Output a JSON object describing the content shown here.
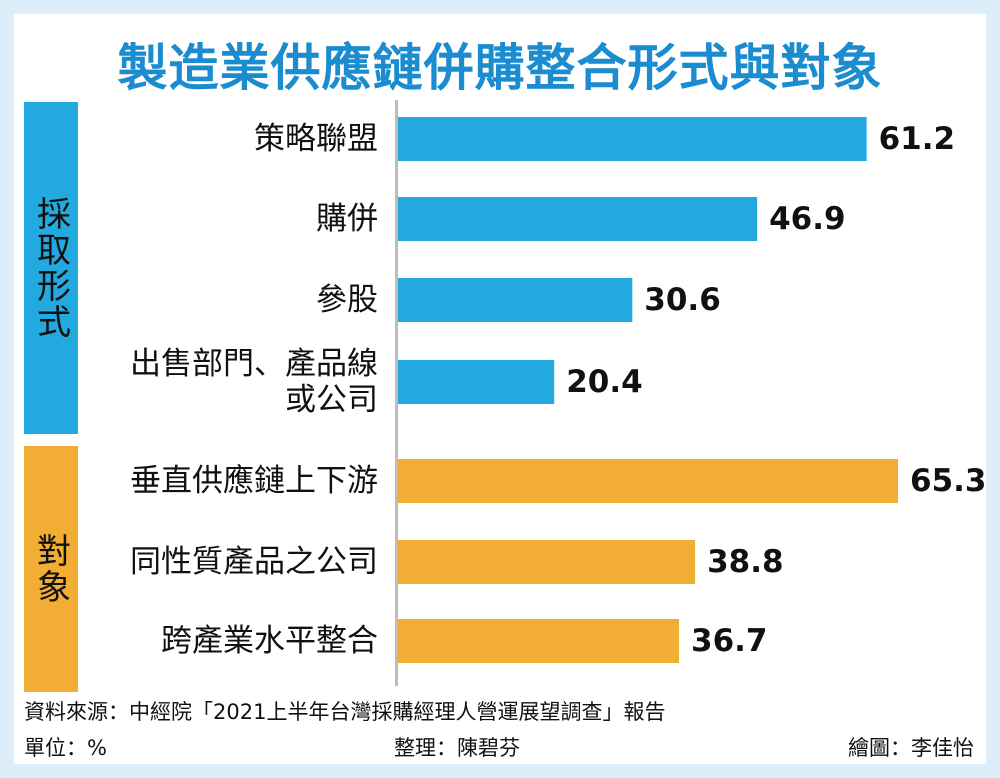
{
  "title": "製造業供應鏈併購整合形式與對象",
  "groups": {
    "methods": "採取形式",
    "targets": "對象"
  },
  "footer": {
    "source": "資料來源：中經院「2021上半年台灣採購經理人營運展望調查」報告",
    "unit": "單位：%",
    "editor": "整理：陳碧芬",
    "illustrator": "繪圖：李佳怡"
  },
  "colors": {
    "methods": "#22a9df",
    "targets": "#f2ad34",
    "title": "#1a8ccf"
  },
  "chart_data": {
    "type": "bar",
    "orientation": "horizontal",
    "xlim": [
      0,
      65.3
    ],
    "items": [
      {
        "group": "methods",
        "label": [
          "策略聯盟"
        ],
        "value": 61.2,
        "value_label": "61.2"
      },
      {
        "group": "methods",
        "label": [
          "購併"
        ],
        "value": 46.9,
        "value_label": "46.9"
      },
      {
        "group": "methods",
        "label": [
          "參股"
        ],
        "value": 30.6,
        "value_label": "30.6"
      },
      {
        "group": "methods",
        "label": [
          "出售部門、產品線",
          "或公司"
        ],
        "value": 20.4,
        "value_label": "20.4"
      },
      {
        "group": "targets",
        "label": [
          "垂直供應鏈上下游"
        ],
        "value": 65.3,
        "value_label": "65.3"
      },
      {
        "group": "targets",
        "label": [
          "同性質產品之公司"
        ],
        "value": 38.8,
        "value_label": "38.8"
      },
      {
        "group": "targets",
        "label": [
          "跨產業水平整合"
        ],
        "value": 36.7,
        "value_label": "36.7"
      }
    ]
  }
}
